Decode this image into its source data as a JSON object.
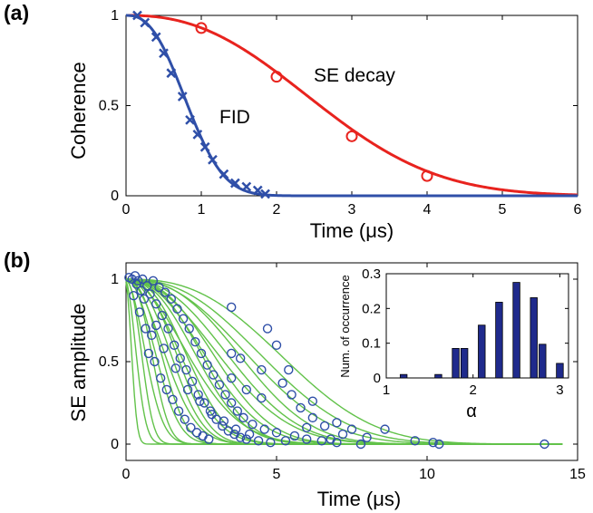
{
  "chart_data": [
    {
      "panel_label": "(a)",
      "type": "line",
      "xlabel": "Time (μs)",
      "ylabel": "Coherence",
      "xlim": [
        0,
        6
      ],
      "ylim": [
        0,
        1
      ],
      "x_ticks": [
        "0",
        "1",
        "2",
        "3",
        "4",
        "5",
        "6"
      ],
      "y_ticks": [
        "0",
        "0.5",
        "1"
      ],
      "series": [
        {
          "name": "SE decay",
          "color": "#e8231e",
          "marker": "circle",
          "fit": {
            "model": "exp(-(t/T)^n)",
            "T": 3.0,
            "n": 2.4
          },
          "points": [
            {
              "x": 1,
              "y": 0.93
            },
            {
              "x": 2,
              "y": 0.66
            },
            {
              "x": 3,
              "y": 0.33
            },
            {
              "x": 4,
              "y": 0.11
            }
          ]
        },
        {
          "name": "FID",
          "color": "#2f4fa8",
          "marker": "x",
          "fit": {
            "model": "exp(-(t/T)^n)",
            "T": 0.95,
            "n": 2.5
          },
          "points": [
            {
              "x": 0.15,
              "y": 1.0
            },
            {
              "x": 0.25,
              "y": 0.96
            },
            {
              "x": 0.4,
              "y": 0.88
            },
            {
              "x": 0.5,
              "y": 0.79
            },
            {
              "x": 0.6,
              "y": 0.68
            },
            {
              "x": 0.75,
              "y": 0.55
            },
            {
              "x": 0.85,
              "y": 0.42
            },
            {
              "x": 0.95,
              "y": 0.34
            },
            {
              "x": 1.05,
              "y": 0.27
            },
            {
              "x": 1.15,
              "y": 0.2
            },
            {
              "x": 1.3,
              "y": 0.12
            },
            {
              "x": 1.45,
              "y": 0.07
            },
            {
              "x": 1.6,
              "y": 0.05
            },
            {
              "x": 1.75,
              "y": 0.03
            },
            {
              "x": 1.85,
              "y": 0.01
            }
          ]
        }
      ],
      "annotations": [
        "SE decay",
        "FID"
      ]
    },
    {
      "panel_label": "(b)",
      "type": "scatter",
      "xlabel": "Time (μs)",
      "ylabel": "SE amplitude",
      "xlim": [
        0,
        15
      ],
      "ylim": [
        0,
        1
      ],
      "x_ticks": [
        "0",
        "5",
        "10",
        "15"
      ],
      "y_ticks": [
        "0",
        "0.5",
        "1"
      ],
      "fit_color": "#62c24a",
      "marker_color": "#2f4fa8",
      "fit_curves": [
        {
          "T": 0.3,
          "n": 2.2
        },
        {
          "T": 0.5,
          "n": 2.0
        },
        {
          "T": 0.7,
          "n": 2.4
        },
        {
          "T": 0.9,
          "n": 2.0
        },
        {
          "T": 1.1,
          "n": 2.6
        },
        {
          "T": 1.3,
          "n": 2.2
        },
        {
          "T": 1.5,
          "n": 2.5
        },
        {
          "T": 1.7,
          "n": 2.1
        },
        {
          "T": 1.9,
          "n": 2.4
        },
        {
          "T": 2.1,
          "n": 2.6
        },
        {
          "T": 2.3,
          "n": 2.3
        },
        {
          "T": 2.5,
          "n": 2.5
        },
        {
          "T": 2.7,
          "n": 2.0
        },
        {
          "T": 2.9,
          "n": 2.4
        },
        {
          "T": 3.1,
          "n": 2.6
        },
        {
          "T": 3.3,
          "n": 2.3
        },
        {
          "T": 3.6,
          "n": 2.5
        },
        {
          "T": 3.9,
          "n": 2.2
        },
        {
          "T": 4.2,
          "n": 2.4
        },
        {
          "T": 4.6,
          "n": 2.6
        },
        {
          "T": 5.0,
          "n": 2.4
        },
        {
          "T": 5.5,
          "n": 2.5
        },
        {
          "T": 6.2,
          "n": 2.7
        }
      ],
      "points": [
        {
          "x": 0.1,
          "y": 1.01
        },
        {
          "x": 0.2,
          "y": 1.0
        },
        {
          "x": 0.3,
          "y": 1.02
        },
        {
          "x": 0.35,
          "y": 0.97
        },
        {
          "x": 0.4,
          "y": 0.99
        },
        {
          "x": 0.5,
          "y": 0.93
        },
        {
          "x": 0.55,
          "y": 1.0
        },
        {
          "x": 0.6,
          "y": 0.88
        },
        {
          "x": 0.7,
          "y": 0.96
        },
        {
          "x": 0.8,
          "y": 0.91
        },
        {
          "x": 0.9,
          "y": 0.99
        },
        {
          "x": 1.0,
          "y": 0.85
        },
        {
          "x": 1.1,
          "y": 0.95
        },
        {
          "x": 1.2,
          "y": 0.78
        },
        {
          "x": 1.3,
          "y": 0.92
        },
        {
          "x": 1.4,
          "y": 0.7
        },
        {
          "x": 1.5,
          "y": 0.88
        },
        {
          "x": 1.6,
          "y": 0.6
        },
        {
          "x": 1.7,
          "y": 0.82
        },
        {
          "x": 1.8,
          "y": 0.52
        },
        {
          "x": 1.9,
          "y": 0.76
        },
        {
          "x": 2.0,
          "y": 0.45
        },
        {
          "x": 2.1,
          "y": 0.7
        },
        {
          "x": 2.2,
          "y": 0.38
        },
        {
          "x": 2.3,
          "y": 0.62
        },
        {
          "x": 2.4,
          "y": 0.3
        },
        {
          "x": 2.5,
          "y": 0.55
        },
        {
          "x": 2.6,
          "y": 0.25
        },
        {
          "x": 2.7,
          "y": 0.48
        },
        {
          "x": 2.8,
          "y": 0.2
        },
        {
          "x": 2.9,
          "y": 0.42
        },
        {
          "x": 3.0,
          "y": 0.15
        },
        {
          "x": 3.1,
          "y": 0.36
        },
        {
          "x": 3.2,
          "y": 0.11
        },
        {
          "x": 3.3,
          "y": 0.3
        },
        {
          "x": 3.4,
          "y": 0.08
        },
        {
          "x": 3.5,
          "y": 0.25
        },
        {
          "x": 3.6,
          "y": 0.06
        },
        {
          "x": 3.7,
          "y": 0.2
        },
        {
          "x": 3.8,
          "y": 0.04
        },
        {
          "x": 3.9,
          "y": 0.16
        },
        {
          "x": 4.0,
          "y": 0.03
        },
        {
          "x": 4.2,
          "y": 0.12
        },
        {
          "x": 4.4,
          "y": 0.02
        },
        {
          "x": 4.6,
          "y": 0.09
        },
        {
          "x": 4.8,
          "y": 0.01
        },
        {
          "x": 5.0,
          "y": 0.07
        },
        {
          "x": 5.3,
          "y": 0.02
        },
        {
          "x": 5.6,
          "y": 0.05
        },
        {
          "x": 6.0,
          "y": 0.03
        },
        {
          "x": 6.5,
          "y": 0.02
        },
        {
          "x": 7.0,
          "y": 0.01
        },
        {
          "x": 0.45,
          "y": 0.8
        },
        {
          "x": 0.65,
          "y": 0.7
        },
        {
          "x": 0.75,
          "y": 0.55
        },
        {
          "x": 0.95,
          "y": 0.5
        },
        {
          "x": 1.15,
          "y": 0.4
        },
        {
          "x": 1.35,
          "y": 0.33
        },
        {
          "x": 1.55,
          "y": 0.27
        },
        {
          "x": 1.75,
          "y": 0.2
        },
        {
          "x": 1.95,
          "y": 0.15
        },
        {
          "x": 2.15,
          "y": 0.1
        },
        {
          "x": 2.35,
          "y": 0.07
        },
        {
          "x": 2.55,
          "y": 0.05
        },
        {
          "x": 2.75,
          "y": 0.03
        },
        {
          "x": 0.25,
          "y": 0.9
        },
        {
          "x": 0.85,
          "y": 0.66
        },
        {
          "x": 1.25,
          "y": 0.58
        },
        {
          "x": 1.65,
          "y": 0.46
        },
        {
          "x": 2.05,
          "y": 0.33
        },
        {
          "x": 2.45,
          "y": 0.26
        },
        {
          "x": 2.85,
          "y": 0.18
        },
        {
          "x": 3.25,
          "y": 0.14
        },
        {
          "x": 3.65,
          "y": 0.09
        },
        {
          "x": 4.1,
          "y": 0.06
        },
        {
          "x": 3.5,
          "y": 0.4
        },
        {
          "x": 4.0,
          "y": 0.33
        },
        {
          "x": 4.5,
          "y": 0.28
        },
        {
          "x": 3.8,
          "y": 0.52
        },
        {
          "x": 4.5,
          "y": 0.45
        },
        {
          "x": 5.2,
          "y": 0.37
        },
        {
          "x": 5.5,
          "y": 0.3
        },
        {
          "x": 5.8,
          "y": 0.22
        },
        {
          "x": 6.2,
          "y": 0.16
        },
        {
          "x": 6.6,
          "y": 0.11
        },
        {
          "x": 7.2,
          "y": 0.06
        },
        {
          "x": 3.5,
          "y": 0.83
        },
        {
          "x": 3.5,
          "y": 0.55
        },
        {
          "x": 4.7,
          "y": 0.7
        },
        {
          "x": 5.0,
          "y": 0.6
        },
        {
          "x": 6.2,
          "y": 0.26
        },
        {
          "x": 7.0,
          "y": 0.13
        },
        {
          "x": 7.5,
          "y": 0.09
        },
        {
          "x": 8.0,
          "y": 0.04
        },
        {
          "x": 8.6,
          "y": 0.09
        },
        {
          "x": 7.8,
          "y": 0.0
        },
        {
          "x": 9.6,
          "y": 0.02
        },
        {
          "x": 10.2,
          "y": 0.01
        },
        {
          "x": 10.4,
          "y": 0.0
        },
        {
          "x": 13.9,
          "y": 0.0
        },
        {
          "x": 5.4,
          "y": 0.45
        },
        {
          "x": 6.0,
          "y": 0.1
        },
        {
          "x": 6.8,
          "y": 0.03
        },
        {
          "x": 1.0,
          "y": 0.72
        }
      ],
      "inset": {
        "type": "bar",
        "xlabel": "α",
        "ylabel": "Num. of occurrence",
        "xlim": [
          1,
          3.1
        ],
        "ylim": [
          0,
          0.3
        ],
        "x_ticks": [
          "1",
          "2",
          "3"
        ],
        "y_ticks": [
          "0",
          "0.1",
          "0.2",
          "0.3"
        ],
        "bin_width": 0.1,
        "bar_color": "#1f2a8c",
        "bins": [
          {
            "x": 1.2,
            "y": 0.01
          },
          {
            "x": 1.6,
            "y": 0.01
          },
          {
            "x": 1.8,
            "y": 0.085
          },
          {
            "x": 1.9,
            "y": 0.085
          },
          {
            "x": 2.1,
            "y": 0.152
          },
          {
            "x": 2.3,
            "y": 0.218
          },
          {
            "x": 2.5,
            "y": 0.275
          },
          {
            "x": 2.7,
            "y": 0.231
          },
          {
            "x": 2.8,
            "y": 0.097
          },
          {
            "x": 3.0,
            "y": 0.042
          }
        ]
      }
    }
  ]
}
